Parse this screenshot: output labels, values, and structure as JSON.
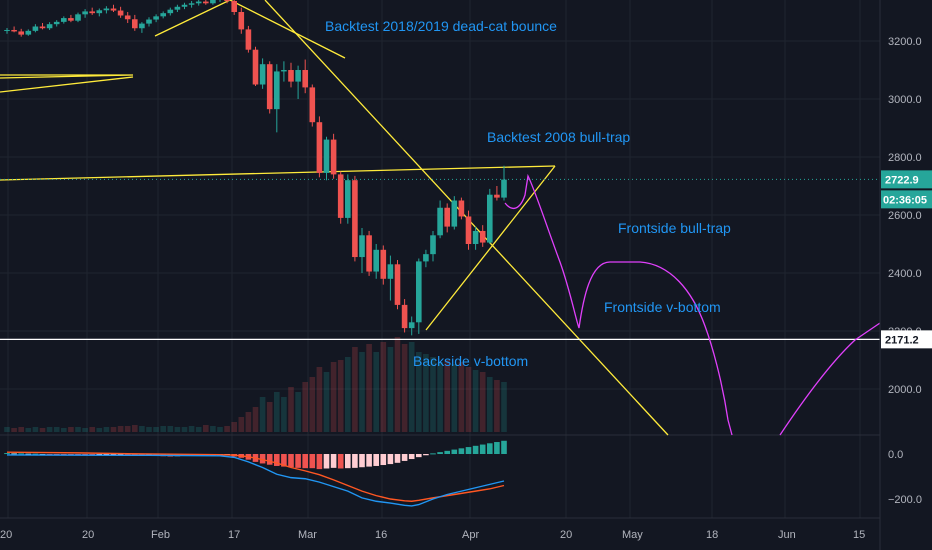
{
  "colors": {
    "background": "#131722",
    "grid": "#1f2430",
    "up": "#26a69a",
    "down": "#ef5350",
    "trendline": "#ffeb3b",
    "projection": "#e040fb",
    "annotation": "#2196f3",
    "support": "#ffffff",
    "price_line": "#26a69a",
    "macd_line": "#2196f3",
    "signal_line": "#ff5722"
  },
  "chart_data": {
    "type": "candlestick",
    "price_axis": {
      "ticks": [
        {
          "value": 3200,
          "label": "3200.0"
        },
        {
          "value": 3000,
          "label": "3000.0"
        },
        {
          "value": 2800,
          "label": "2800.0"
        },
        {
          "value": 2600,
          "label": "2600.0"
        },
        {
          "value": 2400,
          "label": "2400.0"
        },
        {
          "value": 2200,
          "label": "2200.0"
        },
        {
          "value": 2000,
          "label": "2000.0"
        }
      ],
      "range": [
        1850,
        3330
      ]
    },
    "macd_axis": {
      "ticks": [
        {
          "value": 0,
          "label": "0.0"
        },
        {
          "value": -200,
          "label": "−200.0"
        }
      ],
      "range": [
        -260,
        40
      ]
    },
    "time_axis": {
      "ticks": [
        "20",
        "20",
        "Feb",
        "17",
        "Mar",
        "16",
        "Apr",
        "20",
        "May",
        "18",
        "Jun",
        "15"
      ]
    },
    "last_price": {
      "value": 2722.9,
      "label": "2722.9"
    },
    "countdown": "02:36:05",
    "support_level": {
      "value": 2171.2,
      "label": "2171.2"
    },
    "candles": [
      [
        3235,
        3245,
        3225,
        3238
      ],
      [
        3238,
        3250,
        3230,
        3233
      ],
      [
        3233,
        3242,
        3215,
        3222
      ],
      [
        3222,
        3240,
        3218,
        3235
      ],
      [
        3235,
        3258,
        3230,
        3250
      ],
      [
        3250,
        3262,
        3240,
        3244
      ],
      [
        3244,
        3265,
        3238,
        3258
      ],
      [
        3258,
        3272,
        3250,
        3266
      ],
      [
        3266,
        3285,
        3260,
        3279
      ],
      [
        3279,
        3290,
        3265,
        3270
      ],
      [
        3270,
        3298,
        3265,
        3292
      ],
      [
        3292,
        3310,
        3280,
        3302
      ],
      [
        3302,
        3315,
        3290,
        3296
      ],
      [
        3296,
        3312,
        3285,
        3306
      ],
      [
        3306,
        3320,
        3295,
        3312
      ],
      [
        3312,
        3325,
        3300,
        3305
      ],
      [
        3305,
        3318,
        3280,
        3288
      ],
      [
        3288,
        3300,
        3262,
        3275
      ],
      [
        3275,
        3290,
        3235,
        3244
      ],
      [
        3244,
        3265,
        3228,
        3260
      ],
      [
        3260,
        3282,
        3250,
        3274
      ],
      [
        3274,
        3292,
        3265,
        3285
      ],
      [
        3285,
        3302,
        3278,
        3296
      ],
      [
        3296,
        3315,
        3288,
        3308
      ],
      [
        3308,
        3325,
        3300,
        3318
      ],
      [
        3318,
        3332,
        3310,
        3325
      ],
      [
        3325,
        3338,
        3315,
        3330
      ],
      [
        3330,
        3342,
        3322,
        3336
      ],
      [
        3336,
        3345,
        3325,
        3330
      ],
      [
        3330,
        3348,
        3325,
        3342
      ],
      [
        3342,
        3350,
        3335,
        3345
      ],
      [
        3345,
        3352,
        3330,
        3338
      ],
      [
        3338,
        3345,
        3290,
        3300
      ],
      [
        3300,
        3315,
        3225,
        3240
      ],
      [
        3240,
        3252,
        3160,
        3170
      ],
      [
        3170,
        3180,
        3045,
        3050
      ],
      [
        3050,
        3140,
        3035,
        3120
      ],
      [
        3120,
        3130,
        2950,
        2965
      ],
      [
        2965,
        3120,
        2885,
        3095
      ],
      [
        3095,
        3130,
        3060,
        3100
      ],
      [
        3100,
        3125,
        3040,
        3060
      ],
      [
        3060,
        3115,
        3000,
        3100
      ],
      [
        3100,
        3136,
        3020,
        3040
      ],
      [
        3040,
        3050,
        2905,
        2920
      ],
      [
        2920,
        2940,
        2730,
        2745
      ],
      [
        2745,
        2870,
        2720,
        2860
      ],
      [
        2860,
        2880,
        2725,
        2740
      ],
      [
        2740,
        2750,
        2570,
        2590
      ],
      [
        2590,
        2740,
        2570,
        2720
      ],
      [
        2720,
        2735,
        2440,
        2455
      ],
      [
        2455,
        2555,
        2400,
        2530
      ],
      [
        2530,
        2545,
        2390,
        2405
      ],
      [
        2405,
        2500,
        2380,
        2480
      ],
      [
        2480,
        2495,
        2360,
        2380
      ],
      [
        2380,
        2460,
        2305,
        2430
      ],
      [
        2430,
        2445,
        2275,
        2290
      ],
      [
        2290,
        2310,
        2195,
        2210
      ],
      [
        2210,
        2250,
        2185,
        2230
      ],
      [
        2230,
        2450,
        2190,
        2440
      ],
      [
        2440,
        2480,
        2420,
        2465
      ],
      [
        2465,
        2545,
        2440,
        2530
      ],
      [
        2530,
        2650,
        2520,
        2625
      ],
      [
        2625,
        2640,
        2540,
        2560
      ],
      [
        2560,
        2665,
        2550,
        2650
      ],
      [
        2650,
        2660,
        2585,
        2595
      ],
      [
        2595,
        2615,
        2480,
        2500
      ],
      [
        2500,
        2560,
        2480,
        2545
      ],
      [
        2545,
        2565,
        2490,
        2505
      ],
      [
        2505,
        2690,
        2500,
        2670
      ],
      [
        2670,
        2700,
        2650,
        2660
      ],
      [
        2660,
        2770,
        2650,
        2722
      ]
    ],
    "volume": [
      0.05,
      0.04,
      0.05,
      0.04,
      0.05,
      0.04,
      0.05,
      0.05,
      0.04,
      0.05,
      0.05,
      0.04,
      0.05,
      0.04,
      0.05,
      0.05,
      0.06,
      0.06,
      0.07,
      0.06,
      0.05,
      0.05,
      0.06,
      0.06,
      0.05,
      0.05,
      0.06,
      0.05,
      0.07,
      0.06,
      0.05,
      0.06,
      0.1,
      0.15,
      0.2,
      0.25,
      0.35,
      0.3,
      0.4,
      0.35,
      0.45,
      0.4,
      0.5,
      0.55,
      0.65,
      0.6,
      0.7,
      0.72,
      0.75,
      0.85,
      0.8,
      0.88,
      0.8,
      0.9,
      0.85,
      0.95,
      0.88,
      0.9,
      0.8,
      0.78,
      0.75,
      0.7,
      0.72,
      0.68,
      0.7,
      0.65,
      0.62,
      0.6,
      0.55,
      0.52,
      0.5
    ],
    "macd_hist": [
      3,
      2,
      2,
      1,
      1,
      0,
      -1,
      -2,
      -3,
      -3,
      -4,
      -5,
      -5,
      -4,
      -3,
      -2,
      -1,
      -2,
      -4,
      -6,
      -5,
      -6,
      -7,
      -8,
      -7,
      -6,
      -5,
      -4,
      -6,
      -5,
      -4,
      -3,
      -8,
      -12,
      -18,
      -25,
      -30,
      -34,
      -38,
      -40,
      -42,
      -44,
      -45,
      -45,
      -48,
      -46,
      -44,
      -46,
      -45,
      -44,
      -42,
      -40,
      -38,
      -35,
      -32,
      -28,
      -22,
      -16,
      -10,
      -4,
      2,
      6,
      10,
      14,
      18,
      22,
      26,
      30,
      34,
      38,
      42
    ],
    "macd_line": [
      [
        0,
        -4
      ],
      [
        10,
        -5
      ],
      [
        20,
        -6
      ],
      [
        30,
        -8
      ],
      [
        32,
        -15
      ],
      [
        34,
        -35
      ],
      [
        36,
        -60
      ],
      [
        38,
        -90
      ],
      [
        40,
        -105
      ],
      [
        42,
        -110
      ],
      [
        44,
        -125
      ],
      [
        46,
        -145
      ],
      [
        48,
        -165
      ],
      [
        50,
        -195
      ],
      [
        52,
        -210
      ],
      [
        54,
        -218
      ],
      [
        56,
        -228
      ],
      [
        57,
        -231
      ],
      [
        58,
        -225
      ],
      [
        60,
        -200
      ],
      [
        62,
        -180
      ],
      [
        64,
        -165
      ],
      [
        66,
        -150
      ],
      [
        68,
        -135
      ],
      [
        70,
        -120
      ]
    ],
    "signal_line": [
      [
        0,
        8
      ],
      [
        10,
        5
      ],
      [
        20,
        0
      ],
      [
        30,
        -3
      ],
      [
        32,
        -5
      ],
      [
        34,
        -12
      ],
      [
        36,
        -25
      ],
      [
        38,
        -40
      ],
      [
        40,
        -60
      ],
      [
        42,
        -75
      ],
      [
        44,
        -92
      ],
      [
        46,
        -115
      ],
      [
        48,
        -140
      ],
      [
        50,
        -165
      ],
      [
        52,
        -185
      ],
      [
        54,
        -200
      ],
      [
        56,
        -208
      ],
      [
        57,
        -210
      ],
      [
        58,
        -206
      ],
      [
        60,
        -195
      ],
      [
        62,
        -185
      ],
      [
        64,
        -175
      ],
      [
        66,
        -165
      ],
      [
        68,
        -155
      ],
      [
        70,
        -140
      ]
    ],
    "annotations": [
      {
        "text": "Backtest 2018/2019 dead-cat bounce"
      },
      {
        "text": "Backtest 2008 bull-trap"
      },
      {
        "text": "Frontside bull-trap"
      },
      {
        "text": "Frontside v-bottom"
      },
      {
        "text": "Backside v-bottom"
      }
    ]
  }
}
